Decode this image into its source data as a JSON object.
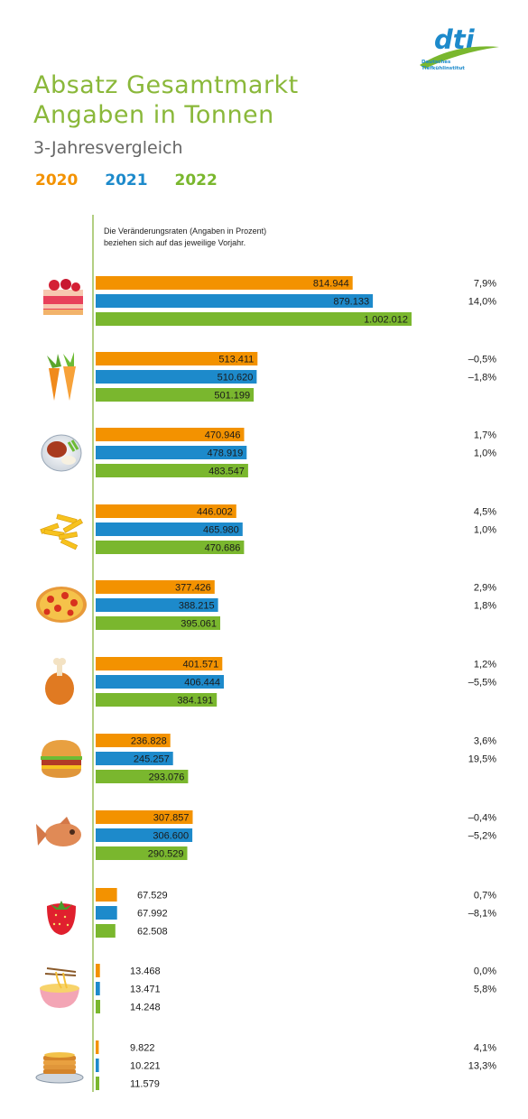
{
  "header": {
    "title_line1": "Absatz Gesamtmarkt",
    "title_line2": "Angaben in Tonnen",
    "subtitle": "3-Jahresvergleich",
    "note_line1": "Die Veränderungsraten (Angaben in Prozent)",
    "note_line2": "beziehen sich auf das jeweilige Vorjahr."
  },
  "logo": {
    "wordmark": "dti",
    "line1": "Deutsches",
    "line2": "Tiefkühlinstitut"
  },
  "colors": {
    "2020": "#f39200",
    "2021": "#1d8acb",
    "2022": "#7ab72e",
    "title": "#8ab83a"
  },
  "chart_data": {
    "type": "bar",
    "orientation": "horizontal",
    "grid": false,
    "legend_placement": "top-left",
    "series": [
      {
        "name": "2020",
        "values": [
          814944,
          513411,
          470946,
          446002,
          377426,
          401571,
          236828,
          307857,
          67529,
          13468,
          9822
        ]
      },
      {
        "name": "2021",
        "values": [
          879133,
          510620,
          478919,
          465980,
          388215,
          406444,
          245257,
          306600,
          67992,
          13471,
          10221
        ]
      },
      {
        "name": "2022",
        "values": [
          1002012,
          501199,
          483547,
          470686,
          395061,
          384191,
          293076,
          290529,
          62508,
          14248,
          11579
        ]
      }
    ],
    "value_labels": [
      [
        "814.944",
        "879.133",
        "1.002.012"
      ],
      [
        "513.411",
        "510.620",
        "501.199"
      ],
      [
        "470.946",
        "478.919",
        "483.547"
      ],
      [
        "446.002",
        "465.980",
        "470.686"
      ],
      [
        "377.426",
        "388.215",
        "395.061"
      ],
      [
        "401.571",
        "406.444",
        "384.191"
      ],
      [
        "236.828",
        "245.257",
        "293.076"
      ],
      [
        "307.857",
        "306.600",
        "290.529"
      ],
      [
        "67.529",
        "67.992",
        "62.508"
      ],
      [
        "13.468",
        "13.471",
        "14.248"
      ],
      [
        "9.822",
        "10.221",
        "11.579"
      ]
    ],
    "change_rates": [
      [
        "7,9%",
        "14,0%"
      ],
      [
        "–0,5%",
        "–1,8%"
      ],
      [
        "1,7%",
        "1,0%"
      ],
      [
        "4,5%",
        "1,0%"
      ],
      [
        "2,9%",
        "1,8%"
      ],
      [
        "1,2%",
        "–5,5%"
      ],
      [
        "3,6%",
        "19,5%"
      ],
      [
        "–0,4%",
        "–5,2%"
      ],
      [
        "0,7%",
        "–8,1%"
      ],
      [
        "0,0%",
        "5,8%"
      ],
      [
        "4,1%",
        "13,3%"
      ]
    ],
    "category_icons": [
      "cake-icon",
      "carrot-icon",
      "meal-plate-icon",
      "fries-icon",
      "pizza-icon",
      "poultry-leg-icon",
      "burger-icon",
      "fish-icon",
      "strawberry-icon",
      "noodles-icon",
      "pancakes-icon"
    ]
  }
}
